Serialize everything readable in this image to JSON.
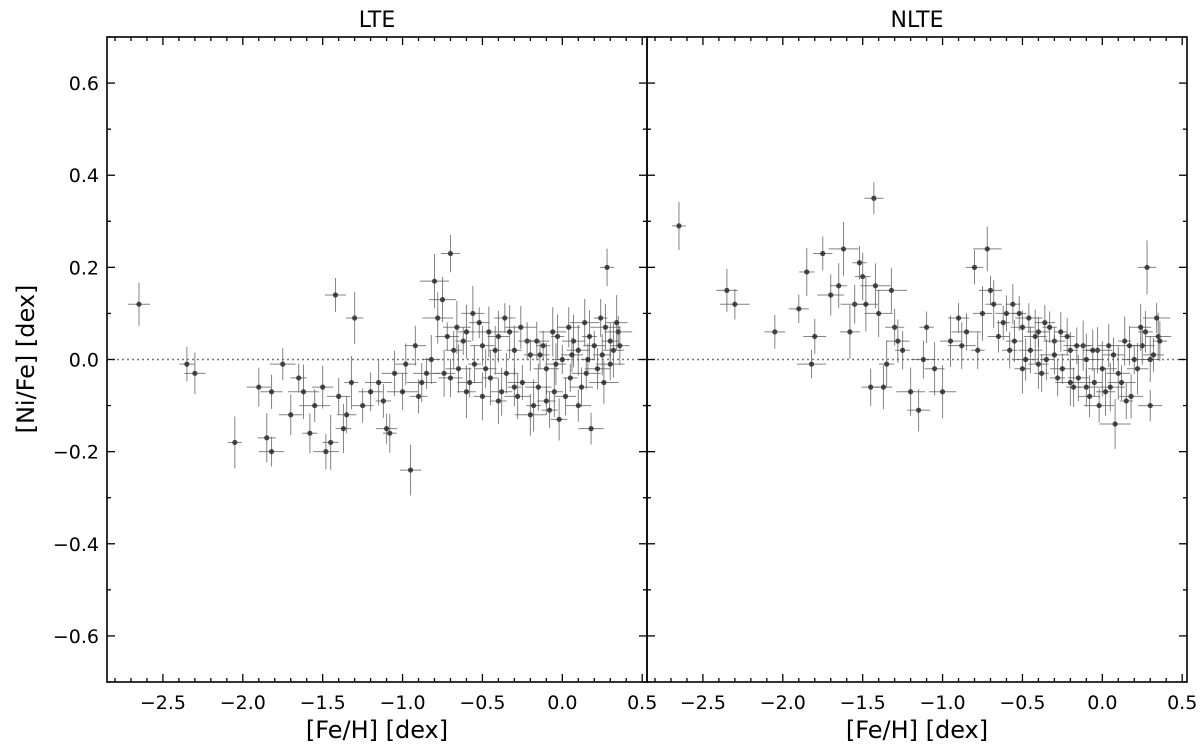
{
  "chart_data": [
    {
      "type": "scatter",
      "title": "LTE",
      "xlabel": "[Fe/H] [dex]",
      "ylabel": "[Ni/Fe] [dex]",
      "xlim": [
        -2.85,
        0.53
      ],
      "ylim": [
        -0.7,
        0.7
      ],
      "xticks": [
        -2.5,
        -2.0,
        -1.5,
        -1.0,
        -0.5,
        0.0,
        0.5
      ],
      "xticklabels": [
        "−2.5",
        "−2.0",
        "−1.5",
        "−1.0",
        "−0.5",
        "0.0",
        "0.5"
      ],
      "yticks": [
        -0.6,
        -0.4,
        -0.2,
        0.0,
        0.2,
        0.4,
        0.6
      ],
      "yticklabels": [
        "−0.6",
        "−0.4",
        "−0.2",
        "0.0",
        "0.2",
        "0.4",
        "0.6"
      ],
      "reference_line_y": 0.0,
      "error_bars": true,
      "points": [
        [
          -2.65,
          0.12
        ],
        [
          -2.35,
          -0.01
        ],
        [
          -2.3,
          -0.03
        ],
        [
          -2.05,
          -0.18
        ],
        [
          -1.9,
          -0.06
        ],
        [
          -1.85,
          -0.17
        ],
        [
          -1.82,
          -0.2
        ],
        [
          -1.82,
          -0.07
        ],
        [
          -1.75,
          -0.01
        ],
        [
          -1.7,
          -0.12
        ],
        [
          -1.65,
          -0.04
        ],
        [
          -1.62,
          -0.07
        ],
        [
          -1.58,
          -0.16
        ],
        [
          -1.55,
          -0.1
        ],
        [
          -1.5,
          -0.06
        ],
        [
          -1.48,
          -0.2
        ],
        [
          -1.45,
          -0.18
        ],
        [
          -1.42,
          0.14
        ],
        [
          -1.4,
          -0.08
        ],
        [
          -1.37,
          -0.15
        ],
        [
          -1.35,
          -0.12
        ],
        [
          -1.32,
          -0.05
        ],
        [
          -1.3,
          0.09
        ],
        [
          -1.25,
          -0.1
        ],
        [
          -1.2,
          -0.07
        ],
        [
          -1.15,
          -0.05
        ],
        [
          -1.12,
          -0.09
        ],
        [
          -1.1,
          -0.15
        ],
        [
          -1.08,
          -0.16
        ],
        [
          -1.05,
          -0.03
        ],
        [
          -1.0,
          -0.07
        ],
        [
          -0.98,
          -0.01
        ],
        [
          -0.95,
          -0.24
        ],
        [
          -0.92,
          0.03
        ],
        [
          -0.9,
          -0.08
        ],
        [
          -0.85,
          -0.03
        ],
        [
          -0.82,
          0.0
        ],
        [
          -0.8,
          0.17
        ],
        [
          -0.78,
          0.09
        ],
        [
          -0.75,
          0.13
        ],
        [
          -0.72,
          0.05
        ],
        [
          -0.7,
          0.23
        ],
        [
          -0.68,
          0.02
        ],
        [
          -0.65,
          -0.02
        ],
        [
          -0.6,
          0.06
        ],
        [
          -0.55,
          -0.01
        ],
        [
          -0.5,
          0.03
        ],
        [
          -0.45,
          -0.04
        ],
        [
          -0.4,
          0.05
        ],
        [
          -0.35,
          -0.03
        ],
        [
          -0.3,
          0.02
        ],
        [
          -0.25,
          -0.05
        ],
        [
          -0.2,
          0.01
        ],
        [
          -0.15,
          -0.06
        ],
        [
          -0.1,
          -0.02
        ],
        [
          -0.05,
          -0.07
        ],
        [
          0.0,
          0.0
        ],
        [
          0.05,
          -0.04
        ],
        [
          0.1,
          0.02
        ],
        [
          0.15,
          -0.03
        ],
        [
          0.2,
          0.03
        ],
        [
          0.25,
          0.01
        ],
        [
          0.28,
          0.2
        ],
        [
          0.3,
          0.04
        ],
        [
          0.35,
          0.06
        ],
        [
          -0.62,
          0.04
        ],
        [
          -0.58,
          -0.05
        ],
        [
          -0.52,
          0.08
        ],
        [
          -0.48,
          -0.02
        ],
        [
          -0.42,
          0.02
        ],
        [
          -0.38,
          -0.07
        ],
        [
          -0.33,
          0.06
        ],
        [
          -0.28,
          -0.08
        ],
        [
          -0.22,
          0.04
        ],
        [
          -0.18,
          -0.1
        ],
        [
          -0.12,
          0.03
        ],
        [
          -0.08,
          -0.11
        ],
        [
          -0.03,
          0.05
        ],
        [
          0.02,
          -0.08
        ],
        [
          0.07,
          0.04
        ],
        [
          0.12,
          -0.06
        ],
        [
          0.17,
          0.05
        ],
        [
          0.22,
          -0.02
        ],
        [
          0.27,
          0.07
        ],
        [
          0.32,
          0.02
        ],
        [
          -0.88,
          -0.05
        ],
        [
          -0.74,
          -0.03
        ],
        [
          -0.66,
          0.07
        ],
        [
          -0.56,
          0.1
        ],
        [
          -0.46,
          0.06
        ],
        [
          -0.36,
          0.09
        ],
        [
          -0.26,
          0.07
        ],
        [
          -0.16,
          0.04
        ],
        [
          -0.06,
          0.06
        ],
        [
          0.04,
          0.07
        ],
        [
          0.14,
          0.08
        ],
        [
          0.24,
          0.09
        ],
        [
          0.34,
          0.08
        ],
        [
          0.18,
          -0.15
        ],
        [
          0.1,
          -0.1
        ],
        [
          -0.02,
          -0.13
        ],
        [
          -0.1,
          -0.09
        ],
        [
          -0.2,
          -0.12
        ],
        [
          -0.3,
          -0.06
        ],
        [
          -0.4,
          -0.09
        ],
        [
          -0.5,
          -0.08
        ],
        [
          -0.6,
          -0.07
        ],
        [
          -0.7,
          -0.04
        ],
        [
          0.3,
          -0.01
        ],
        [
          0.36,
          0.03
        ],
        [
          0.26,
          -0.05
        ],
        [
          0.16,
          0.0
        ],
        [
          0.06,
          0.01
        ],
        [
          -0.04,
          -0.01
        ],
        [
          -0.14,
          0.01
        ]
      ]
    },
    {
      "type": "scatter",
      "title": "NLTE",
      "xlabel": "[Fe/H] [dex]",
      "ylabel": "",
      "xlim": [
        -2.85,
        0.53
      ],
      "ylim": [
        -0.7,
        0.7
      ],
      "xticks": [
        -2.5,
        -2.0,
        -1.5,
        -1.0,
        -0.5,
        0.0,
        0.5
      ],
      "xticklabels": [
        "−2.5",
        "−2.0",
        "−1.5",
        "−1.0",
        "−0.5",
        "0.0",
        "0.5"
      ],
      "reference_line_y": 0.0,
      "error_bars": true,
      "points": [
        [
          -2.65,
          0.29
        ],
        [
          -2.35,
          0.15
        ],
        [
          -2.3,
          0.12
        ],
        [
          -2.05,
          0.06
        ],
        [
          -1.9,
          0.11
        ],
        [
          -1.85,
          0.19
        ],
        [
          -1.82,
          -0.01
        ],
        [
          -1.8,
          0.05
        ],
        [
          -1.75,
          0.23
        ],
        [
          -1.7,
          0.14
        ],
        [
          -1.65,
          0.16
        ],
        [
          -1.62,
          0.24
        ],
        [
          -1.58,
          0.06
        ],
        [
          -1.55,
          0.12
        ],
        [
          -1.52,
          0.21
        ],
        [
          -1.5,
          0.18
        ],
        [
          -1.48,
          0.12
        ],
        [
          -1.45,
          -0.06
        ],
        [
          -1.43,
          0.35
        ],
        [
          -1.42,
          0.16
        ],
        [
          -1.4,
          0.1
        ],
        [
          -1.37,
          -0.06
        ],
        [
          -1.35,
          -0.01
        ],
        [
          -1.32,
          0.15
        ],
        [
          -1.3,
          0.07
        ],
        [
          -1.28,
          0.04
        ],
        [
          -1.25,
          0.02
        ],
        [
          -1.2,
          -0.07
        ],
        [
          -1.15,
          -0.11
        ],
        [
          -1.12,
          0.0
        ],
        [
          -1.1,
          0.07
        ],
        [
          -1.05,
          -0.02
        ],
        [
          -1.0,
          -0.07
        ],
        [
          -0.95,
          0.04
        ],
        [
          -0.9,
          0.09
        ],
        [
          -0.85,
          0.06
        ],
        [
          -0.8,
          0.2
        ],
        [
          -0.78,
          0.02
        ],
        [
          -0.75,
          0.1
        ],
        [
          -0.72,
          0.24
        ],
        [
          -0.7,
          0.15
        ],
        [
          -0.65,
          0.05
        ],
        [
          -0.6,
          0.1
        ],
        [
          -0.55,
          0.04
        ],
        [
          -0.5,
          0.07
        ],
        [
          -0.45,
          0.02
        ],
        [
          -0.4,
          0.06
        ],
        [
          -0.35,
          0.0
        ],
        [
          -0.3,
          0.04
        ],
        [
          -0.25,
          -0.02
        ],
        [
          -0.2,
          0.02
        ],
        [
          -0.15,
          -0.04
        ],
        [
          -0.1,
          0.0
        ],
        [
          -0.05,
          -0.05
        ],
        [
          0.0,
          -0.02
        ],
        [
          0.05,
          -0.06
        ],
        [
          0.1,
          -0.03
        ],
        [
          0.15,
          -0.09
        ],
        [
          0.2,
          0.0
        ],
        [
          0.25,
          0.03
        ],
        [
          0.28,
          0.2
        ],
        [
          0.3,
          -0.1
        ],
        [
          0.35,
          0.05
        ],
        [
          -0.62,
          0.08
        ],
        [
          -0.58,
          0.02
        ],
        [
          -0.52,
          0.1
        ],
        [
          -0.48,
          0.0
        ],
        [
          -0.42,
          0.05
        ],
        [
          -0.38,
          -0.03
        ],
        [
          -0.33,
          0.07
        ],
        [
          -0.28,
          -0.04
        ],
        [
          -0.22,
          0.05
        ],
        [
          -0.18,
          -0.06
        ],
        [
          -0.12,
          0.03
        ],
        [
          -0.08,
          -0.08
        ],
        [
          -0.03,
          0.02
        ],
        [
          0.02,
          -0.07
        ],
        [
          0.07,
          0.01
        ],
        [
          0.12,
          -0.05
        ],
        [
          0.17,
          0.03
        ],
        [
          0.22,
          -0.02
        ],
        [
          0.27,
          0.06
        ],
        [
          0.32,
          0.01
        ],
        [
          -0.88,
          0.03
        ],
        [
          -0.68,
          0.12
        ],
        [
          -0.56,
          0.12
        ],
        [
          -0.46,
          0.09
        ],
        [
          -0.36,
          0.08
        ],
        [
          -0.26,
          0.06
        ],
        [
          -0.16,
          0.03
        ],
        [
          -0.06,
          0.02
        ],
        [
          0.04,
          0.03
        ],
        [
          0.14,
          0.04
        ],
        [
          0.24,
          0.07
        ],
        [
          0.34,
          0.09
        ],
        [
          0.08,
          -0.14
        ],
        [
          -0.02,
          -0.1
        ],
        [
          -0.1,
          -0.06
        ],
        [
          -0.2,
          -0.05
        ],
        [
          -0.3,
          0.01
        ],
        [
          -0.4,
          -0.01
        ],
        [
          -0.5,
          -0.02
        ],
        [
          0.18,
          -0.08
        ],
        [
          0.3,
          0.0
        ],
        [
          0.36,
          0.04
        ]
      ]
    }
  ]
}
